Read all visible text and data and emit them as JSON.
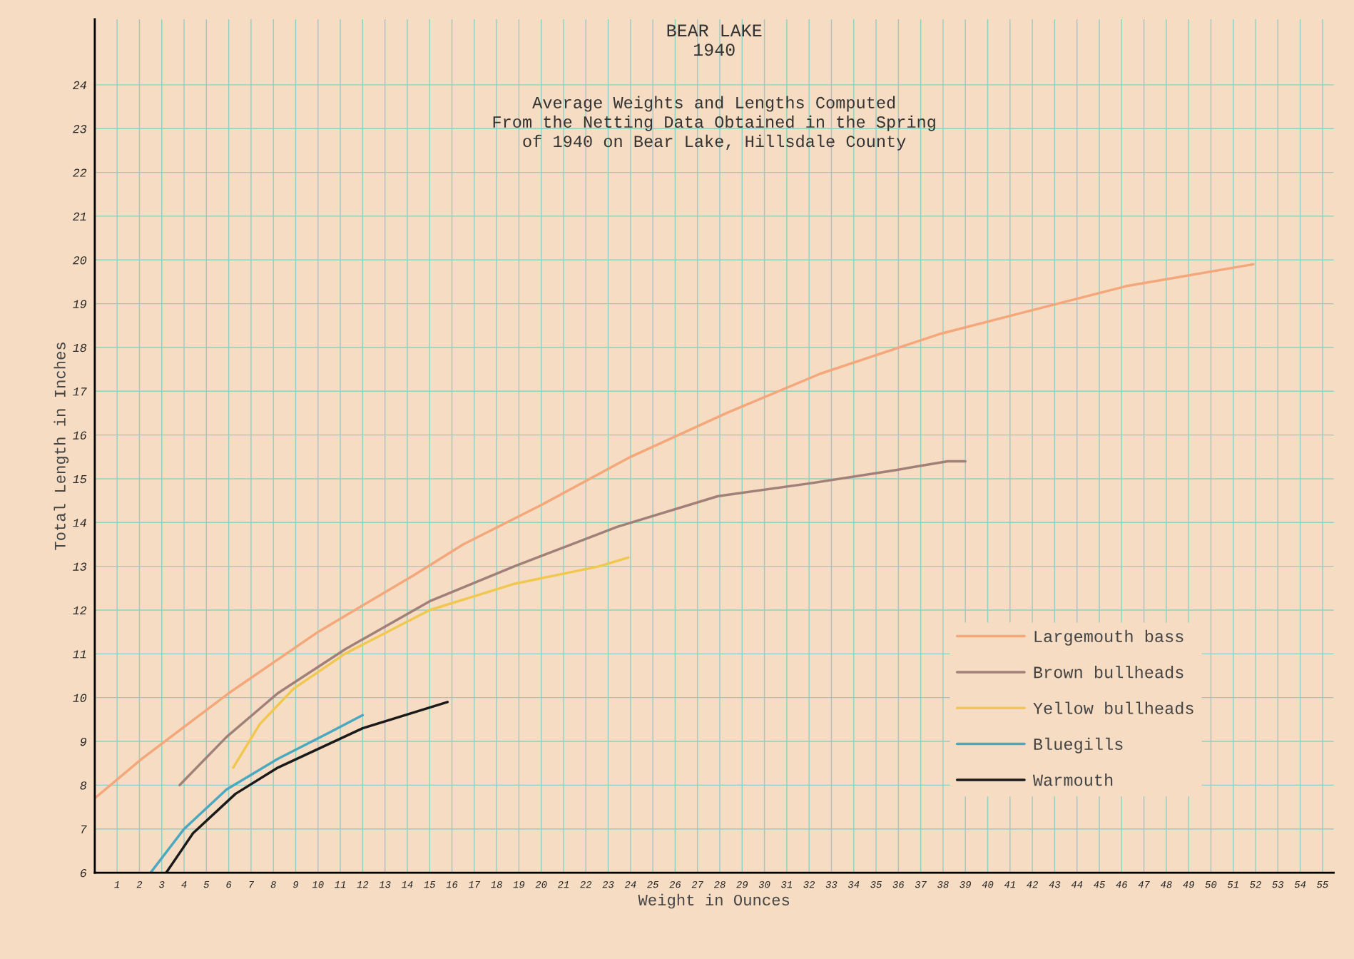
{
  "chart_data": {
    "type": "line",
    "title": "BEAR LAKE\n1940",
    "subtitle": "Average Weights and Lengths Computed\nFrom the Netting Data Obtained in the Spring\nof 1940 on Bear Lake, Hillsdale County",
    "xlabel": "Weight in Ounces",
    "ylabel": "Total Length in Inches",
    "xlim": [
      0,
      55.5
    ],
    "ylim": [
      6,
      25.5
    ],
    "xticks": [
      1,
      2,
      3,
      4,
      5,
      6,
      7,
      8,
      9,
      10,
      11,
      12,
      13,
      14,
      15,
      16,
      17,
      18,
      19,
      20,
      21,
      22,
      23,
      24,
      25,
      26,
      27,
      28,
      29,
      30,
      31,
      32,
      33,
      34,
      35,
      36,
      37,
      38,
      39,
      40,
      41,
      42,
      43,
      44,
      45,
      46,
      47,
      48,
      49,
      50,
      51,
      52,
      53,
      54,
      55
    ],
    "yticks": [
      6,
      7,
      8,
      9,
      10,
      11,
      12,
      13,
      14,
      15,
      16,
      17,
      18,
      19,
      20,
      21,
      22,
      23,
      24
    ],
    "grid": true,
    "legend": "bottom right",
    "marker": "none",
    "line_style": "solid",
    "series": [
      {
        "name": "Largemouth bass",
        "color": "#f4a77a",
        "x": [
          0,
          2.1,
          6,
          10,
          14.3,
          16.5,
          20,
          24,
          28.3,
          32.5,
          37.8,
          41.6,
          46.2,
          51.9
        ],
        "values": [
          7.7,
          8.6,
          10.1,
          11.5,
          12.8,
          13.5,
          14.4,
          15.5,
          16.5,
          17.4,
          18.3,
          18.8,
          19.4,
          19.9
        ]
      },
      {
        "name": "Brown bullheads",
        "color": "#a08078",
        "x": [
          3.8,
          5.9,
          8.2,
          11.2,
          15,
          18.8,
          23.4,
          27.9,
          32.1,
          35.9,
          38.2,
          39
        ],
        "values": [
          8.0,
          9.1,
          10.1,
          11.1,
          12.2,
          13.0,
          13.9,
          14.6,
          14.9,
          15.2,
          15.4,
          15.4
        ]
      },
      {
        "name": "Yellow bullheads",
        "color": "#f0c850",
        "x": [
          6.2,
          7.4,
          8.9,
          11.2,
          15,
          18.8,
          22.6,
          23.9
        ],
        "values": [
          8.4,
          9.4,
          10.2,
          11.0,
          12.0,
          12.6,
          13.0,
          13.2
        ]
      },
      {
        "name": "Bluegills",
        "color": "#4aa8c0",
        "x": [
          2.5,
          4,
          5.9,
          8.2,
          10.5,
          12
        ],
        "values": [
          6.0,
          7.0,
          7.9,
          8.6,
          9.2,
          9.6
        ]
      },
      {
        "name": "Warmouth",
        "color": "#1a1a1a",
        "x": [
          3.2,
          4.4,
          6.3,
          8.2,
          12,
          15.8
        ],
        "values": [
          6.0,
          6.9,
          7.8,
          8.4,
          9.3,
          9.9
        ]
      }
    ]
  }
}
